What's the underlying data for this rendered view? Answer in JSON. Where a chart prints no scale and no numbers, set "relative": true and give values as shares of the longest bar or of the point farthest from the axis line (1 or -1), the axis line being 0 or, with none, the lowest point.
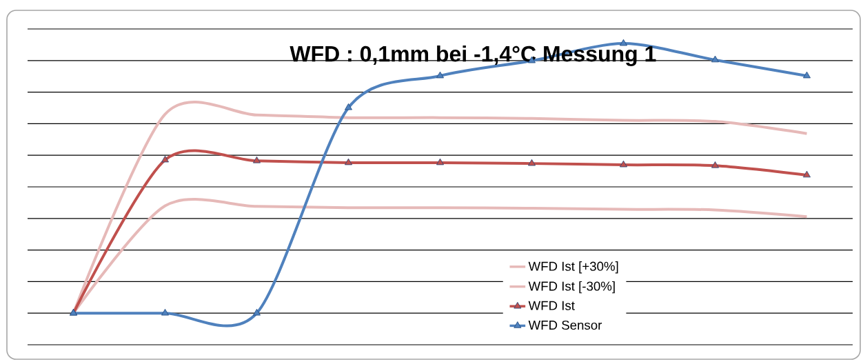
{
  "chart_data": {
    "type": "line",
    "title": "WFD : 0,1mm bei -1,4°C Messung 1",
    "relative": true,
    "categories": [
      null,
      null,
      null,
      null,
      null,
      null,
      null,
      null,
      null
    ],
    "series": [
      {
        "name": "WFD Ist [+30%]",
        "color": "#e6b9b8",
        "marker": "none",
        "values": [
          0,
          0.738,
          0.735,
          0.725,
          0.725,
          0.722,
          0.715,
          0.711,
          0.666
        ]
      },
      {
        "name": "WFD Ist [-30%]",
        "color": "#e6b9b8",
        "marker": "none",
        "values": [
          0,
          0.398,
          0.396,
          0.391,
          0.391,
          0.389,
          0.385,
          0.383,
          0.358
        ]
      },
      {
        "name": "WFD Ist",
        "color": "#c0504d",
        "marker": "triangle",
        "values": [
          0,
          0.568,
          0.565,
          0.558,
          0.558,
          0.555,
          0.55,
          0.547,
          0.512
        ]
      },
      {
        "name": "WFD Sensor",
        "color": "#4f81bd",
        "marker": "triangle",
        "values": [
          0,
          0,
          0,
          0.762,
          0.88,
          0.936,
          1,
          0.939,
          0.88
        ]
      }
    ],
    "grid": "y",
    "legend": "bottom right",
    "line_style": "solid"
  }
}
